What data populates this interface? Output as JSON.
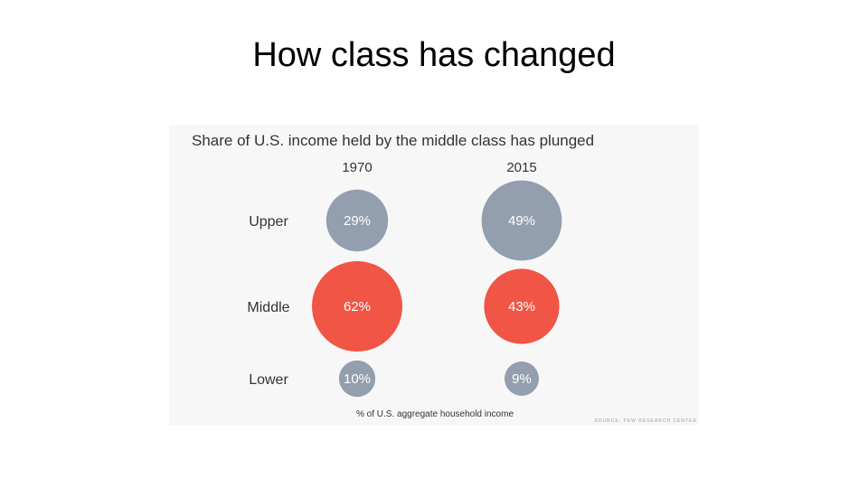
{
  "slide": {
    "title": "How class has changed"
  },
  "chart_data": {
    "type": "bubble",
    "title": "Share of U.S. income held by the middle class has plunged",
    "columns": [
      "1970",
      "2015"
    ],
    "rows": [
      "Upper",
      "Middle",
      "Lower"
    ],
    "series": [
      {
        "name": "1970",
        "values": [
          29,
          62,
          10
        ],
        "labels": [
          "29%",
          "62%",
          "10%"
        ]
      },
      {
        "name": "2015",
        "values": [
          49,
          43,
          9
        ],
        "labels": [
          "49%",
          "43%",
          "9%"
        ]
      }
    ],
    "footnote": "% of U.S. aggregate household income",
    "source": "SOURCE: PEW RESEARCH CENTER",
    "colors": {
      "default": "#939eae",
      "highlight": "#f05545",
      "highlight_row": "Middle"
    }
  }
}
